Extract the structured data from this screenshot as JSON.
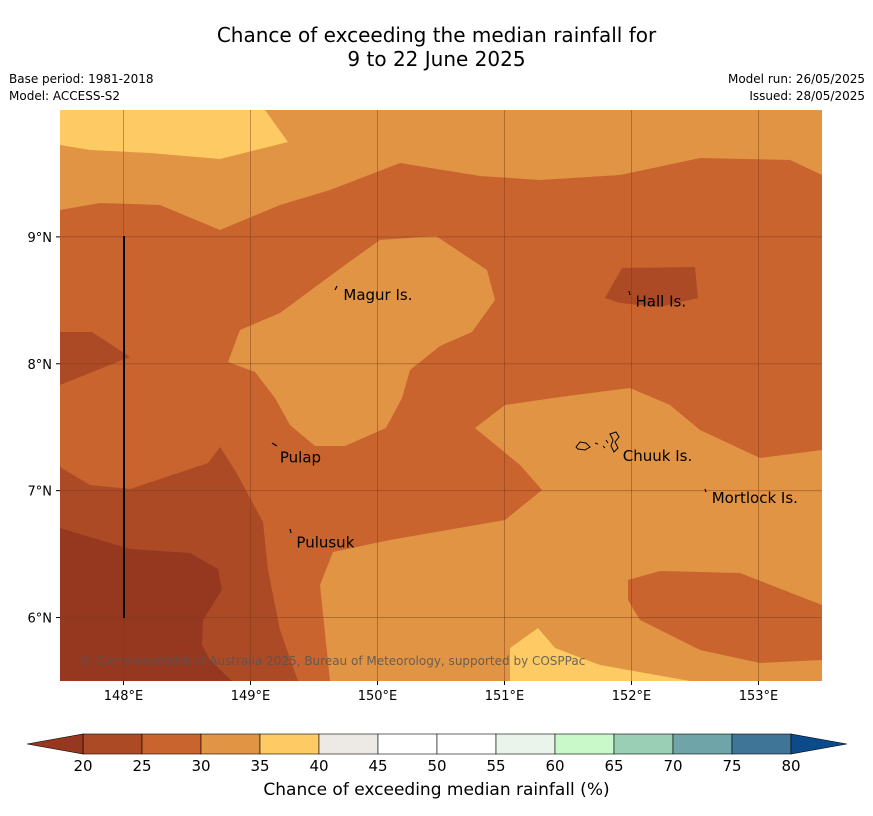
{
  "title": {
    "line1": "Chance of exceeding the median rainfall for",
    "line2": "9 to 22 June 2025"
  },
  "meta_left": {
    "base_period": "Base period: 1981-2018",
    "model": "Model: ACCESS-S2"
  },
  "meta_right": {
    "model_run": "Model run: 26/05/2025",
    "issued": "Issued: 28/05/2025"
  },
  "map": {
    "extent": {
      "lon_min": 147.5,
      "lon_max": 153.5,
      "lat_min": 5.5,
      "lat_max": 10.0
    },
    "lon_ticks": [
      {
        "value": 148,
        "label": "148°E"
      },
      {
        "value": 149,
        "label": "149°E"
      },
      {
        "value": 150,
        "label": "150°E"
      },
      {
        "value": 151,
        "label": "151°E"
      },
      {
        "value": 152,
        "label": "152°E"
      },
      {
        "value": 153,
        "label": "153°E"
      }
    ],
    "lat_ticks": [
      {
        "value": 9,
        "label": "9°N"
      },
      {
        "value": 8,
        "label": "8°N"
      },
      {
        "value": 7,
        "label": "7°N"
      },
      {
        "value": 6,
        "label": "6°N"
      }
    ],
    "places": [
      {
        "name": "Magur Is.",
        "lon": 149.7,
        "lat": 8.55
      },
      {
        "name": "Hall Is.",
        "lon": 152.0,
        "lat": 8.5
      },
      {
        "name": "Pulap",
        "lon": 149.2,
        "lat": 7.27
      },
      {
        "name": "Chuuk Is.",
        "lon": 151.9,
        "lat": 7.28
      },
      {
        "name": "Mortlock Is.",
        "lon": 152.6,
        "lat": 6.95
      },
      {
        "name": "Pulusuk",
        "lon": 149.33,
        "lat": 6.6
      }
    ],
    "copyright": "© Commonwealth of Australia 2025, Bureau of Meteorology, supported by COSPPac"
  },
  "colorbar": {
    "ticks": [
      "20",
      "25",
      "30",
      "35",
      "40",
      "45",
      "50",
      "55",
      "60",
      "65",
      "70",
      "75",
      "80"
    ],
    "under_color": "#963820",
    "over_color": "#0d4a8a",
    "colors": [
      "#ad4a26",
      "#c9642f",
      "#e09444",
      "#fdca63",
      "#ede9e4",
      "#ffffff",
      "#ffffff",
      "#eaf4ea",
      "#c9f9c9",
      "#9bcfb5",
      "#6fa5a8",
      "#3f7596"
    ],
    "label": "Chance of exceeding median rainfall (%)"
  },
  "legend_colors": {
    "c15_20": "#963820",
    "c20_25": "#ad4a26",
    "c25_30": "#c9642f",
    "c30_35": "#e09444",
    "c35_40": "#fdca63"
  }
}
